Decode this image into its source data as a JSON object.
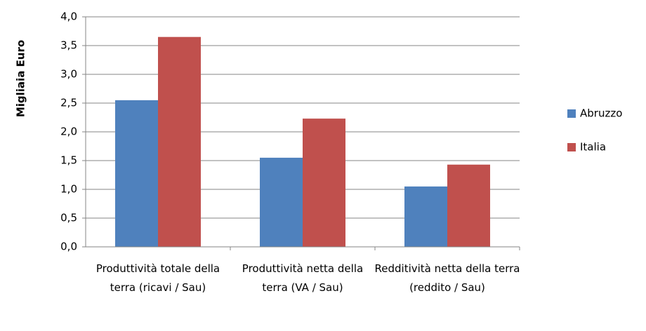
{
  "chart_data": {
    "type": "bar",
    "y_label": "Migliaia Euro",
    "categories": [
      "Produttività totale della terra (ricavi / Sau)",
      "Produttività netta della terra (VA / Sau)",
      "Redditività netta della terra (reddito / Sau)"
    ],
    "series": [
      {
        "name": "Abruzzo",
        "color": "#4f81bd",
        "values": [
          2.55,
          1.55,
          1.05
        ]
      },
      {
        "name": "Italia",
        "color": "#c0504d",
        "values": [
          3.65,
          2.23,
          1.43
        ]
      }
    ],
    "ylim": [
      0,
      4
    ],
    "yticks": [
      {
        "value": 0,
        "label": "0,0"
      },
      {
        "value": 0.5,
        "label": "0,5"
      },
      {
        "value": 1,
        "label": "1,0"
      },
      {
        "value": 1.5,
        "label": "1,5"
      },
      {
        "value": 2,
        "label": "2,0"
      },
      {
        "value": 2.5,
        "label": "2,5"
      },
      {
        "value": 3,
        "label": "3,0"
      },
      {
        "value": 3.5,
        "label": "3,5"
      },
      {
        "value": 4,
        "label": "4,0"
      }
    ],
    "grid": true,
    "legend": "right"
  }
}
